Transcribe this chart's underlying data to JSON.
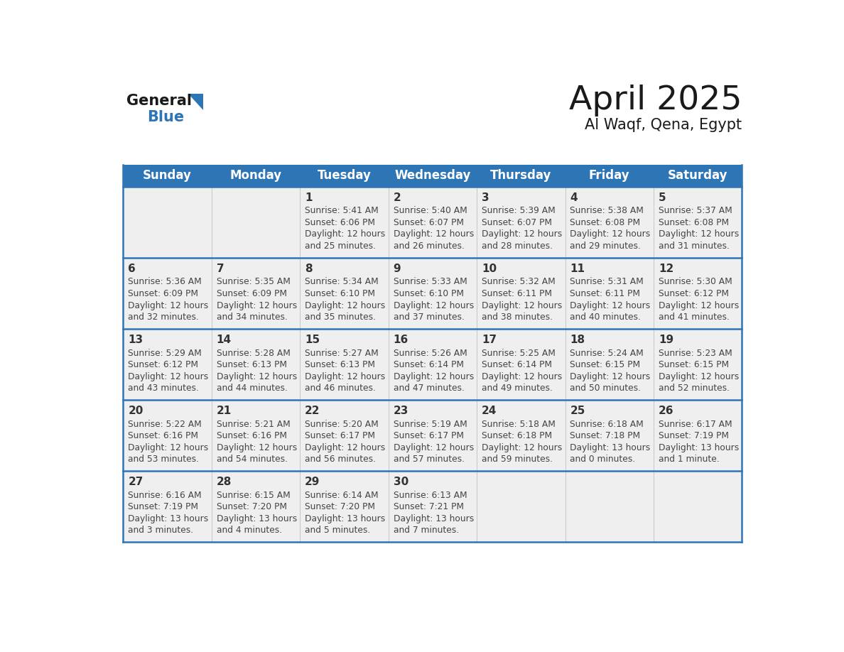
{
  "title": "April 2025",
  "subtitle": "Al Waqf, Qena, Egypt",
  "days_of_week": [
    "Sunday",
    "Monday",
    "Tuesday",
    "Wednesday",
    "Thursday",
    "Friday",
    "Saturday"
  ],
  "header_bg": "#2E75B6",
  "header_text_color": "#FFFFFF",
  "cell_bg_light": "#EFEFEF",
  "border_color": "#2E75B6",
  "text_color": "#444444",
  "title_color": "#1a1a1a",
  "calendar_data": [
    [
      null,
      null,
      {
        "day": 1,
        "sunrise": "5:41 AM",
        "sunset": "6:06 PM",
        "daylight": "12 hours and 25 minutes."
      },
      {
        "day": 2,
        "sunrise": "5:40 AM",
        "sunset": "6:07 PM",
        "daylight": "12 hours and 26 minutes."
      },
      {
        "day": 3,
        "sunrise": "5:39 AM",
        "sunset": "6:07 PM",
        "daylight": "12 hours and 28 minutes."
      },
      {
        "day": 4,
        "sunrise": "5:38 AM",
        "sunset": "6:08 PM",
        "daylight": "12 hours and 29 minutes."
      },
      {
        "day": 5,
        "sunrise": "5:37 AM",
        "sunset": "6:08 PM",
        "daylight": "12 hours and 31 minutes."
      }
    ],
    [
      {
        "day": 6,
        "sunrise": "5:36 AM",
        "sunset": "6:09 PM",
        "daylight": "12 hours and 32 minutes."
      },
      {
        "day": 7,
        "sunrise": "5:35 AM",
        "sunset": "6:09 PM",
        "daylight": "12 hours and 34 minutes."
      },
      {
        "day": 8,
        "sunrise": "5:34 AM",
        "sunset": "6:10 PM",
        "daylight": "12 hours and 35 minutes."
      },
      {
        "day": 9,
        "sunrise": "5:33 AM",
        "sunset": "6:10 PM",
        "daylight": "12 hours and 37 minutes."
      },
      {
        "day": 10,
        "sunrise": "5:32 AM",
        "sunset": "6:11 PM",
        "daylight": "12 hours and 38 minutes."
      },
      {
        "day": 11,
        "sunrise": "5:31 AM",
        "sunset": "6:11 PM",
        "daylight": "12 hours and 40 minutes."
      },
      {
        "day": 12,
        "sunrise": "5:30 AM",
        "sunset": "6:12 PM",
        "daylight": "12 hours and 41 minutes."
      }
    ],
    [
      {
        "day": 13,
        "sunrise": "5:29 AM",
        "sunset": "6:12 PM",
        "daylight": "12 hours and 43 minutes."
      },
      {
        "day": 14,
        "sunrise": "5:28 AM",
        "sunset": "6:13 PM",
        "daylight": "12 hours and 44 minutes."
      },
      {
        "day": 15,
        "sunrise": "5:27 AM",
        "sunset": "6:13 PM",
        "daylight": "12 hours and 46 minutes."
      },
      {
        "day": 16,
        "sunrise": "5:26 AM",
        "sunset": "6:14 PM",
        "daylight": "12 hours and 47 minutes."
      },
      {
        "day": 17,
        "sunrise": "5:25 AM",
        "sunset": "6:14 PM",
        "daylight": "12 hours and 49 minutes."
      },
      {
        "day": 18,
        "sunrise": "5:24 AM",
        "sunset": "6:15 PM",
        "daylight": "12 hours and 50 minutes."
      },
      {
        "day": 19,
        "sunrise": "5:23 AM",
        "sunset": "6:15 PM",
        "daylight": "12 hours and 52 minutes."
      }
    ],
    [
      {
        "day": 20,
        "sunrise": "5:22 AM",
        "sunset": "6:16 PM",
        "daylight": "12 hours and 53 minutes."
      },
      {
        "day": 21,
        "sunrise": "5:21 AM",
        "sunset": "6:16 PM",
        "daylight": "12 hours and 54 minutes."
      },
      {
        "day": 22,
        "sunrise": "5:20 AM",
        "sunset": "6:17 PM",
        "daylight": "12 hours and 56 minutes."
      },
      {
        "day": 23,
        "sunrise": "5:19 AM",
        "sunset": "6:17 PM",
        "daylight": "12 hours and 57 minutes."
      },
      {
        "day": 24,
        "sunrise": "5:18 AM",
        "sunset": "6:18 PM",
        "daylight": "12 hours and 59 minutes."
      },
      {
        "day": 25,
        "sunrise": "6:18 AM",
        "sunset": "7:18 PM",
        "daylight": "13 hours and 0 minutes."
      },
      {
        "day": 26,
        "sunrise": "6:17 AM",
        "sunset": "7:19 PM",
        "daylight": "13 hours and 1 minute."
      }
    ],
    [
      {
        "day": 27,
        "sunrise": "6:16 AM",
        "sunset": "7:19 PM",
        "daylight": "13 hours and 3 minutes."
      },
      {
        "day": 28,
        "sunrise": "6:15 AM",
        "sunset": "7:20 PM",
        "daylight": "13 hours and 4 minutes."
      },
      {
        "day": 29,
        "sunrise": "6:14 AM",
        "sunset": "7:20 PM",
        "daylight": "13 hours and 5 minutes."
      },
      {
        "day": 30,
        "sunrise": "6:13 AM",
        "sunset": "7:21 PM",
        "daylight": "13 hours and 7 minutes."
      },
      null,
      null,
      null
    ]
  ]
}
